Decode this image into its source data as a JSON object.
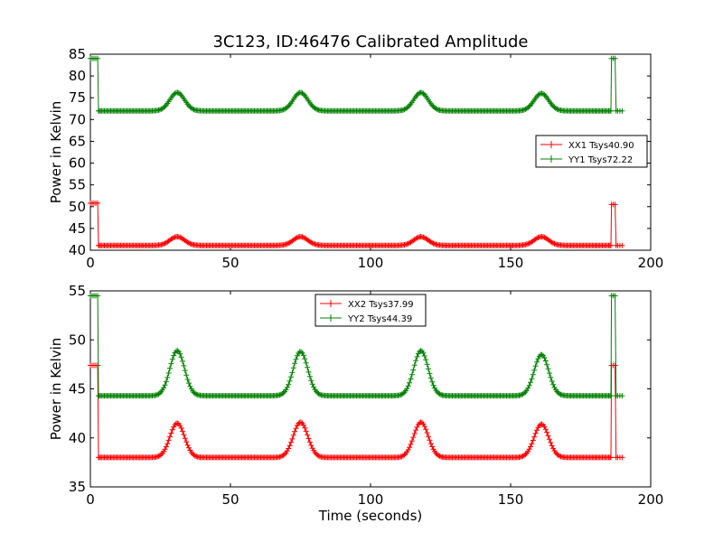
{
  "chart_data": [
    {
      "type": "line",
      "title": "3C123, ID:46476 Calibrated Amplitude",
      "xlabel": "",
      "ylabel": "Power in Kelvin",
      "xlim": [
        0,
        200
      ],
      "ylim": [
        40,
        85
      ],
      "xticks": [
        0,
        50,
        100,
        150,
        200
      ],
      "yticks": [
        40,
        45,
        50,
        55,
        60,
        65,
        70,
        75,
        80,
        85
      ],
      "grid": false,
      "legend_position": "right",
      "series": [
        {
          "name": "XX1 Tsys40.90",
          "color": "#ff0000",
          "marker": "+",
          "baseline": 41.1,
          "bumps": [
            {
              "center": 31,
              "height": 2.0,
              "width": 2.6
            },
            {
              "center": 75,
              "height": 2.0,
              "width": 2.6
            },
            {
              "center": 118,
              "height": 2.0,
              "width": 2.6
            },
            {
              "center": 161,
              "height": 2.0,
              "width": 2.6
            }
          ],
          "start_plateau": {
            "x": [
              0,
              2.6
            ],
            "y": 50.8
          },
          "end_plateau": {
            "x": [
              186,
              187.3
            ],
            "y": 50.5
          },
          "x_end": 190
        },
        {
          "name": "YY1 Tsys72.22",
          "color": "#008000",
          "marker": "+",
          "baseline": 72.0,
          "bumps": [
            {
              "center": 31,
              "height": 4.2,
              "width": 2.6
            },
            {
              "center": 75,
              "height": 4.2,
              "width": 2.6
            },
            {
              "center": 118,
              "height": 4.2,
              "width": 2.6
            },
            {
              "center": 161,
              "height": 4.0,
              "width": 2.6
            }
          ],
          "start_plateau": {
            "x": [
              0,
              2.6
            ],
            "y": 84.0
          },
          "end_plateau": {
            "x": [
              186,
              187.3
            ],
            "y": 84.0
          },
          "x_end": 190
        }
      ]
    },
    {
      "type": "line",
      "title": "",
      "xlabel": "Time (seconds)",
      "ylabel": "Power in Kelvin",
      "xlim": [
        0,
        200
      ],
      "ylim": [
        35,
        55
      ],
      "xticks": [
        0,
        50,
        100,
        150,
        200
      ],
      "yticks": [
        35,
        40,
        45,
        50,
        55
      ],
      "grid": false,
      "legend_position": "top-center",
      "series": [
        {
          "name": "XX2 Tsys37.99",
          "color": "#ff0000",
          "marker": "+",
          "baseline": 38.0,
          "bumps": [
            {
              "center": 31,
              "height": 3.5,
              "width": 2.6
            },
            {
              "center": 75,
              "height": 3.6,
              "width": 2.6
            },
            {
              "center": 118,
              "height": 3.6,
              "width": 2.6
            },
            {
              "center": 161,
              "height": 3.4,
              "width": 2.6
            }
          ],
          "start_plateau": {
            "x": [
              0,
              2.6
            ],
            "y": 47.4
          },
          "end_plateau": {
            "x": [
              186,
              187.3
            ],
            "y": 47.4
          },
          "x_end": 190
        },
        {
          "name": "YY2 Tsys44.39",
          "color": "#008000",
          "marker": "+",
          "baseline": 44.3,
          "bumps": [
            {
              "center": 31,
              "height": 4.6,
              "width": 2.6
            },
            {
              "center": 75,
              "height": 4.5,
              "width": 2.6
            },
            {
              "center": 118,
              "height": 4.6,
              "width": 2.6
            },
            {
              "center": 161,
              "height": 4.2,
              "width": 2.6
            }
          ],
          "start_plateau": {
            "x": [
              0,
              2.6
            ],
            "y": 54.5
          },
          "end_plateau": {
            "x": [
              186,
              187.3
            ],
            "y": 54.5
          },
          "x_end": 190
        }
      ]
    }
  ]
}
